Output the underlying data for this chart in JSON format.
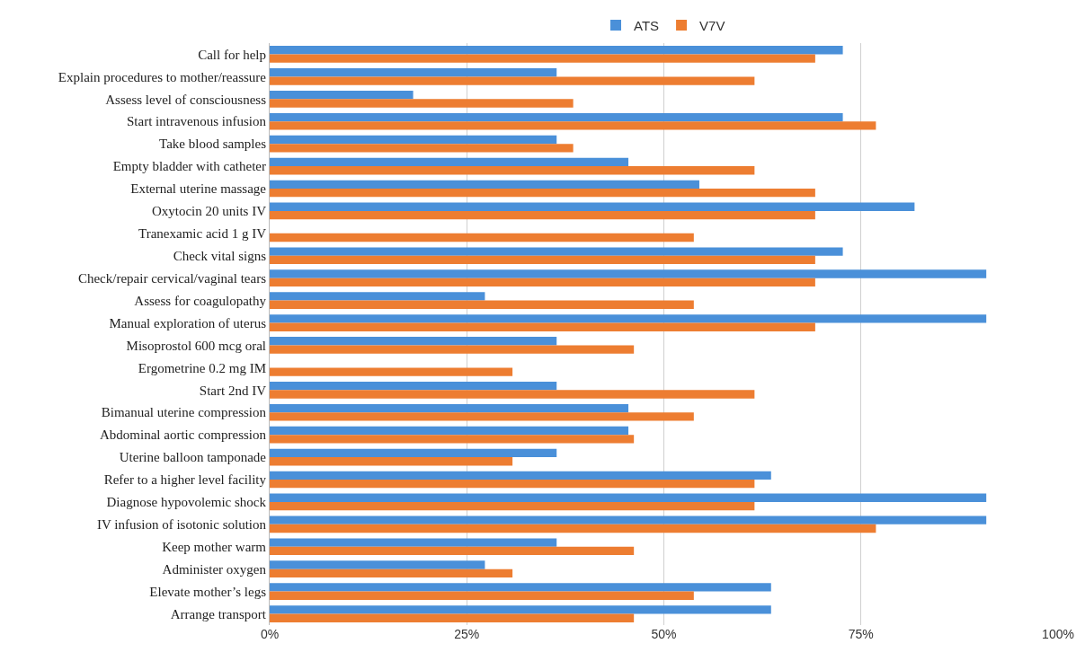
{
  "chart_data": {
    "type": "bar",
    "orientation": "horizontal",
    "legend": "top",
    "grid": "x",
    "categories": [
      "Call for help",
      "Explain procedures to mother/reassure",
      "Assess level of consciousness",
      "Start intravenous infusion",
      "Take blood samples",
      "Empty bladder with catheter",
      "External uterine massage",
      "Oxytocin 20 units IV",
      "Tranexamic acid 1 g IV",
      "Check vital signs",
      "Check/repair cervical/vaginal tears",
      "Assess for coagulopathy",
      "Manual exploration of uterus",
      "Misoprostol 600 mcg oral",
      "Ergometrine 0.2 mg IM",
      "Start 2nd IV",
      "Bimanual uterine compression",
      "Abdominal aortic compression",
      "Uterine balloon tamponade",
      "Refer to a higher level facility",
      "Diagnose hypovolemic shock",
      "IV infusion of isotonic solution",
      "Keep mother warm",
      "Administer oxygen",
      "Elevate mother’s legs",
      "Arrange transport"
    ],
    "series": [
      {
        "name": "ATS",
        "color": "#4a90d9",
        "values": [
          72.7,
          36.4,
          18.2,
          72.7,
          36.4,
          45.5,
          54.5,
          81.8,
          0,
          72.7,
          90.9,
          27.3,
          90.9,
          36.4,
          0,
          36.4,
          45.5,
          45.5,
          36.4,
          63.6,
          90.9,
          90.9,
          36.4,
          27.3,
          63.6,
          63.6
        ]
      },
      {
        "name": "V7V",
        "color": "#ed7d31",
        "values": [
          69.2,
          61.5,
          38.5,
          76.9,
          38.5,
          61.5,
          69.2,
          69.2,
          53.8,
          69.2,
          69.2,
          53.8,
          69.2,
          46.2,
          30.8,
          61.5,
          53.8,
          46.2,
          30.8,
          61.5,
          61.5,
          76.9,
          46.2,
          30.8,
          53.8,
          46.2
        ]
      }
    ],
    "xlim": [
      0,
      100
    ],
    "xticks": [
      {
        "value": 0,
        "label": "0%"
      },
      {
        "value": 25,
        "label": "25%"
      },
      {
        "value": 50,
        "label": "50%"
      },
      {
        "value": 75,
        "label": "75%"
      },
      {
        "value": 100,
        "label": "100%"
      }
    ]
  }
}
